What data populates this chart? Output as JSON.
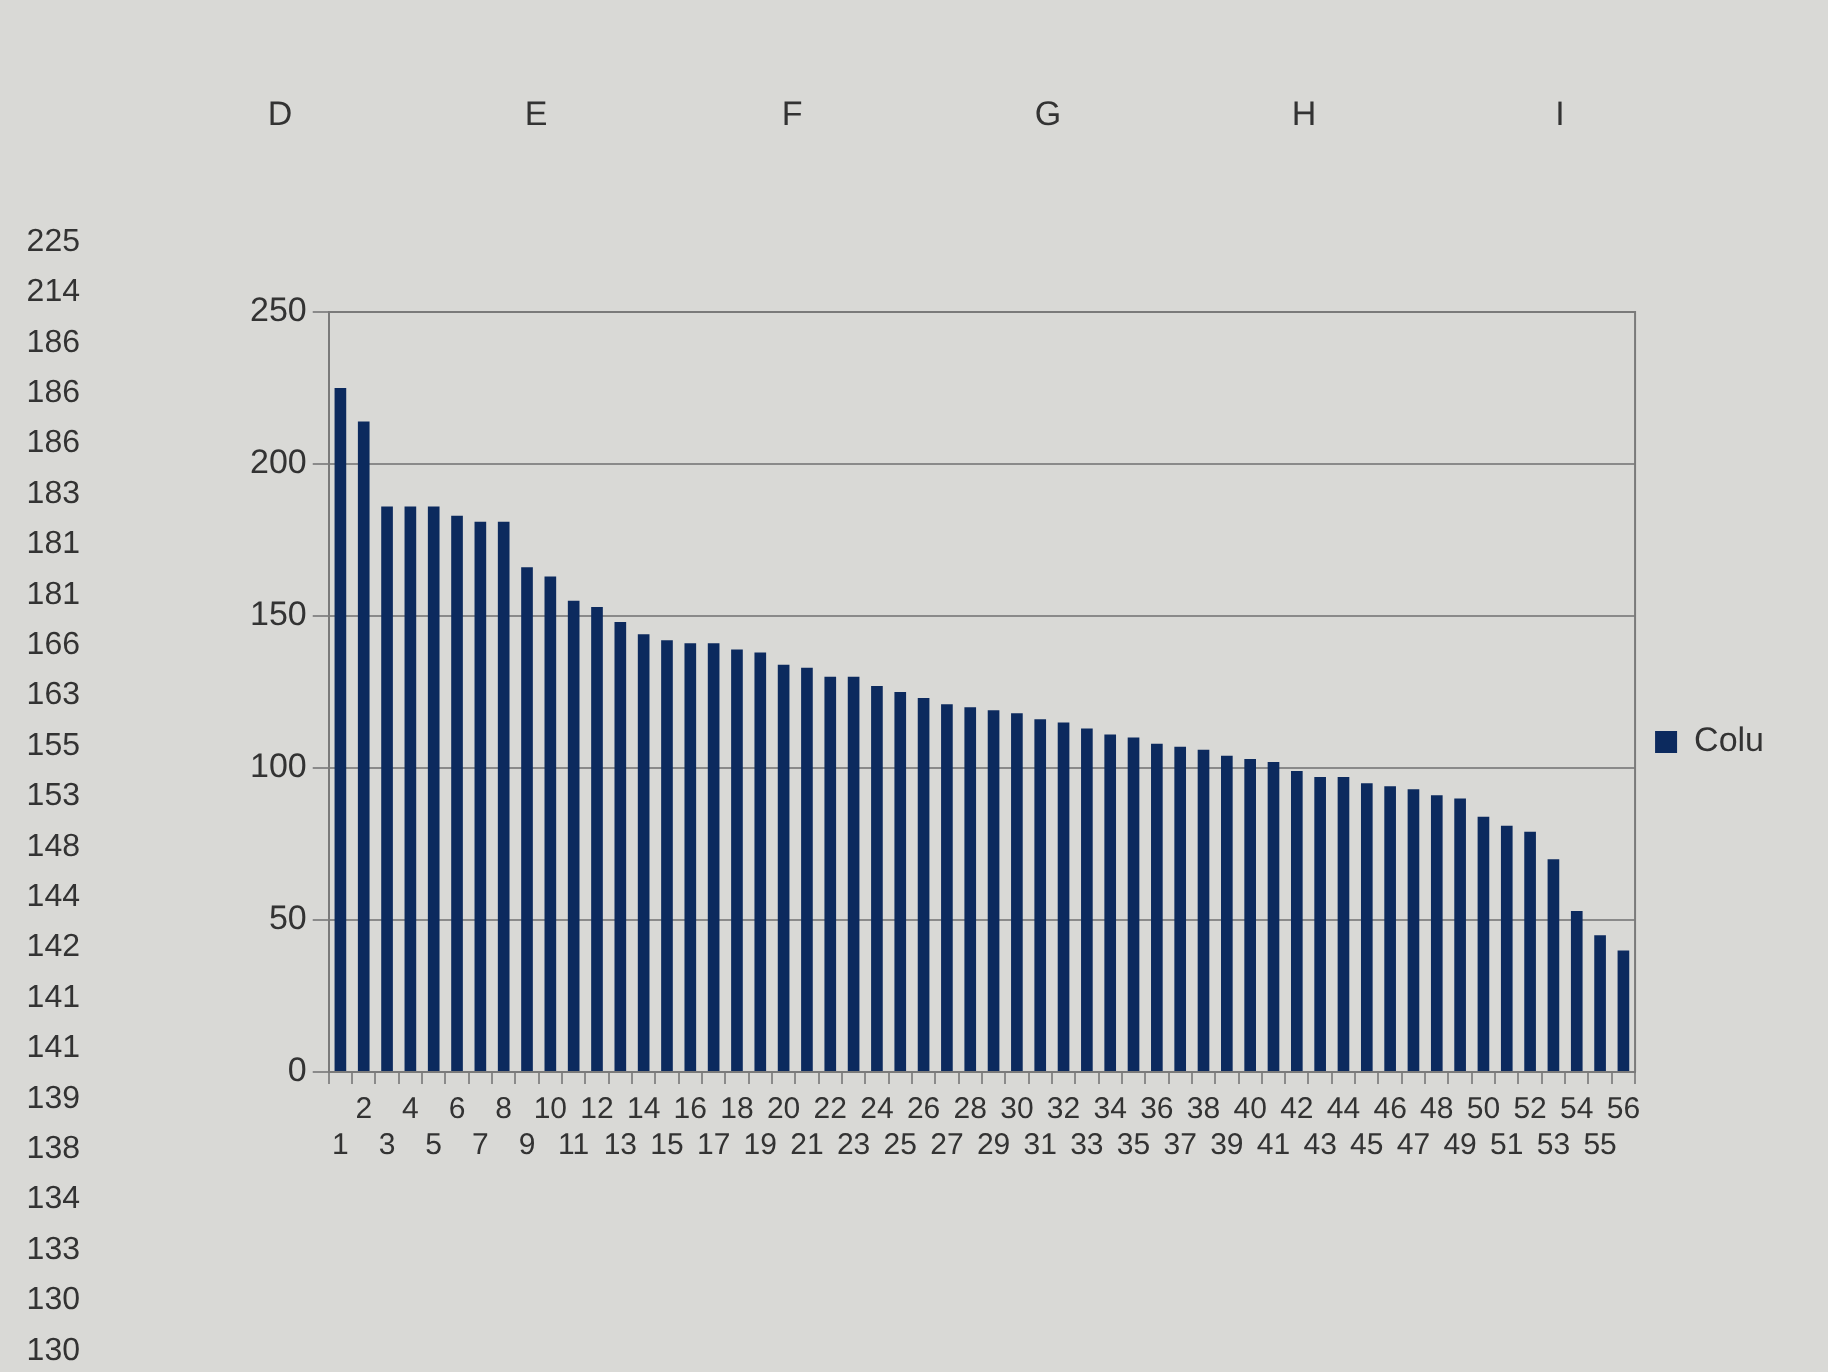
{
  "chart_data": {
    "type": "bar",
    "categories": [
      "1",
      "2",
      "3",
      "4",
      "5",
      "6",
      "7",
      "8",
      "9",
      "10",
      "11",
      "12",
      "13",
      "14",
      "15",
      "16",
      "17",
      "18",
      "19",
      "20",
      "21",
      "22",
      "23",
      "24",
      "25",
      "26",
      "27",
      "28",
      "29",
      "30",
      "31",
      "32",
      "33",
      "34",
      "35",
      "36",
      "37",
      "38",
      "39",
      "40",
      "41",
      "42",
      "43",
      "44",
      "45",
      "46",
      "47",
      "48",
      "49",
      "50",
      "51",
      "52",
      "53",
      "54",
      "55",
      "56"
    ],
    "series": [
      {
        "name": "Colu",
        "color": "#0c2a5e",
        "values": [
          225,
          214,
          186,
          186,
          186,
          183,
          181,
          181,
          166,
          163,
          155,
          153,
          148,
          144,
          142,
          141,
          141,
          139,
          138,
          134,
          133,
          130,
          130,
          127,
          125,
          123,
          121,
          120,
          119,
          118,
          116,
          115,
          113,
          111,
          110,
          108,
          107,
          106,
          104,
          103,
          102,
          99,
          97,
          97,
          95,
          94,
          93,
          91,
          90,
          84,
          81,
          79,
          70,
          53,
          45,
          40
        ]
      }
    ],
    "ylim": [
      0,
      250
    ],
    "yticks": [
      0,
      50,
      100,
      150,
      200,
      250
    ],
    "grid": "y",
    "legend": "right",
    "annotations": [
      "D",
      "E",
      "F",
      "G",
      "H",
      "I",
      "225",
      "214",
      "186",
      "186",
      "186",
      "183",
      "181",
      "181",
      "166",
      "163",
      "155",
      "153",
      "148",
      "144",
      "142",
      "141",
      "141",
      "139",
      "138",
      "134",
      "133",
      "130",
      "130"
    ]
  }
}
